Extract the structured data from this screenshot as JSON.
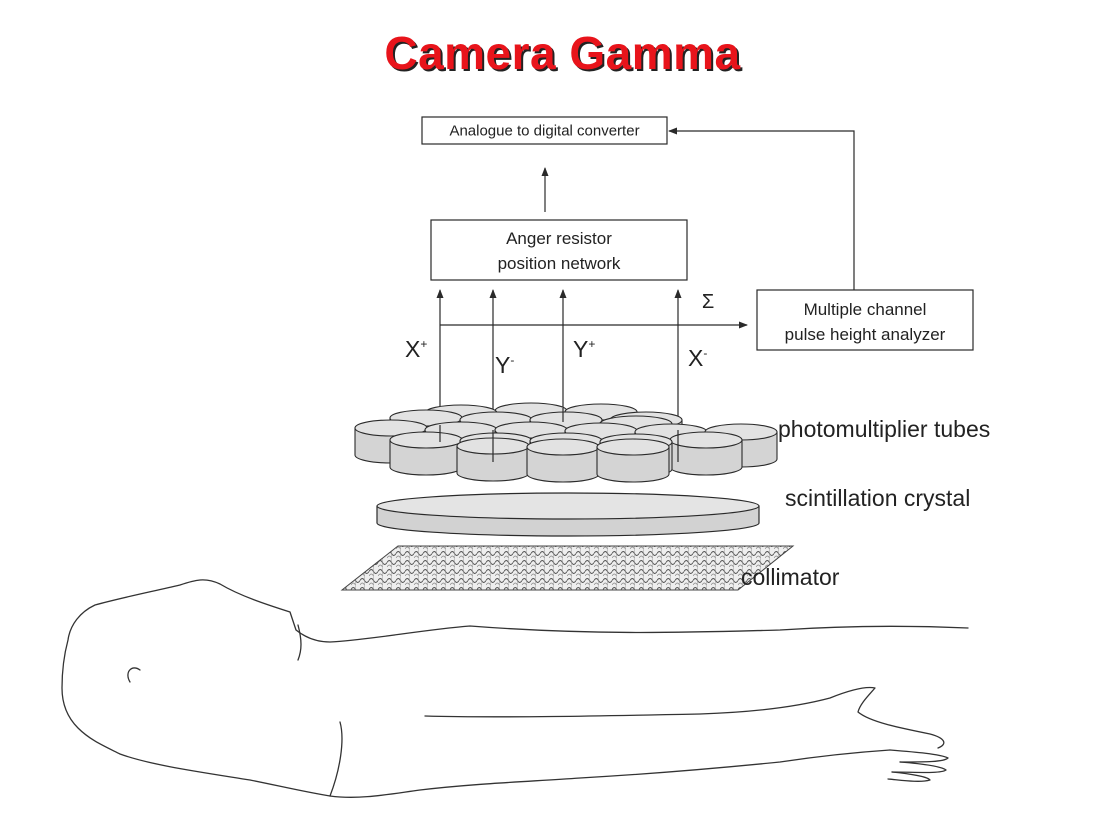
{
  "title": "Camera Gamma",
  "colors": {
    "title": "#e8141b",
    "stroke": "#2a2a2a",
    "fill": "#d4d4d4"
  },
  "diagram": {
    "adc_label": "Analogue to digital converter",
    "anger_line1": "Anger resistor",
    "anger_line2": "position network",
    "pha_line1": "Multiple channel",
    "pha_line2": "pulse height analyzer",
    "sigma": "Σ",
    "xplus_base": "X",
    "xplus_sup": "+",
    "yminus_base": "Y",
    "yminus_sup": "-",
    "yplus_base": "Y",
    "yplus_sup": "+",
    "xminus_base": "X",
    "xminus_sup": "-",
    "pmt_label": "photomultiplier tubes",
    "crystal_label": "scintillation crystal",
    "collimator_label": "collimator"
  }
}
